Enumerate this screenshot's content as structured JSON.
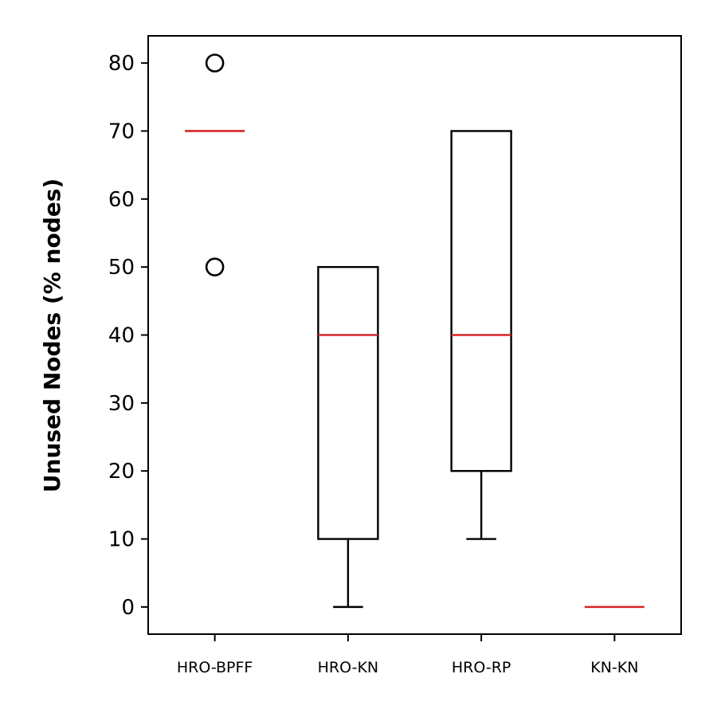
{
  "chart_data": {
    "type": "box",
    "title": "",
    "xlabel": "",
    "ylabel": "Unused Nodes (% nodes)",
    "ylim": [
      -4,
      84
    ],
    "yticks": [
      0,
      10,
      20,
      30,
      40,
      50,
      60,
      70,
      80
    ],
    "grid": false,
    "categories": [
      "HRO-BPFF",
      "HRO-KN",
      "HRO-RP",
      "KN-KN"
    ],
    "boxes": [
      {
        "whisker_low": 70,
        "q1": 70,
        "median": 70,
        "q3": 70,
        "whisker_high": 70,
        "outliers": [
          80,
          50
        ]
      },
      {
        "whisker_low": 0,
        "q1": 10,
        "median": 40,
        "q3": 50,
        "whisker_high": 50,
        "outliers": []
      },
      {
        "whisker_low": 10,
        "q1": 20,
        "median": 40,
        "q3": 70,
        "whisker_high": 70,
        "outliers": []
      },
      {
        "whisker_low": 0,
        "q1": 0,
        "median": 0,
        "q3": 0,
        "whisker_high": 0,
        "outliers": []
      }
    ],
    "colors": {
      "box": "#000000",
      "median": "#d62728",
      "outlier": "#000000"
    }
  }
}
